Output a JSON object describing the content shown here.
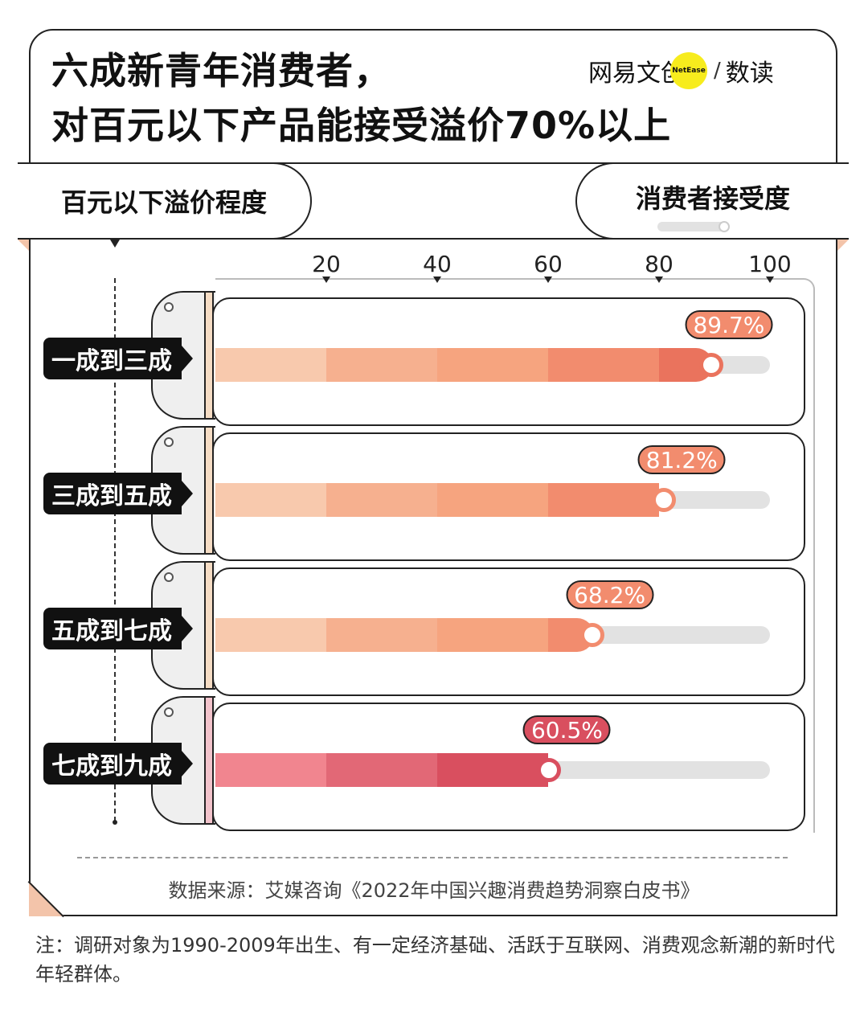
{
  "title_lines": [
    "六成新青年消费者，",
    "对百元以下产品能接受溢价70%以上"
  ],
  "brand": {
    "left": "网易文创",
    "badge": "NetEase",
    "slash": "/",
    "right": "数读"
  },
  "left_header": "百元以下溢价程度",
  "right_header": "消费者接受度",
  "source": "数据来源：艾媒咨询《2022年中国兴趣消费趋势洞察白皮书》",
  "note": "注：调研对象为1990-2009年出生、有一定经济基础、活跃于互联网、消费观念新潮的新时代年轻群体。",
  "chart_data": {
    "type": "bar",
    "orientation": "horizontal",
    "categories": [
      "一成到三成",
      "三成到五成",
      "五成到七成",
      "七成到九成"
    ],
    "values": [
      89.7,
      81.2,
      68.2,
      60.5
    ],
    "value_labels": [
      "89.7%",
      "81.2%",
      "68.2%",
      "60.5%"
    ],
    "ticks": [
      "20",
      "40",
      "60",
      "80",
      "100"
    ],
    "xlim": [
      0,
      100
    ],
    "series_colors": [
      [
        "#f8c9ad",
        "#f6b08f",
        "#f6a47f",
        "#f28c6e",
        "#ea735d"
      ],
      [
        "#f8c9ad",
        "#f6b08f",
        "#f6a47f",
        "#f28c6e"
      ],
      [
        "#f8c9ad",
        "#f6b08f",
        "#f6a47f",
        "#f28c6e"
      ],
      [
        "#f1858f",
        "#e26876",
        "#d94f5f"
      ]
    ],
    "label_colors": [
      "#f28c6e",
      "#f28c6e",
      "#f28c6e",
      "#d94f5f"
    ],
    "spine_colors": [
      "#f5dcc4",
      "#f5dcc4",
      "#f5dcc4",
      "#f2c3cb"
    ]
  }
}
